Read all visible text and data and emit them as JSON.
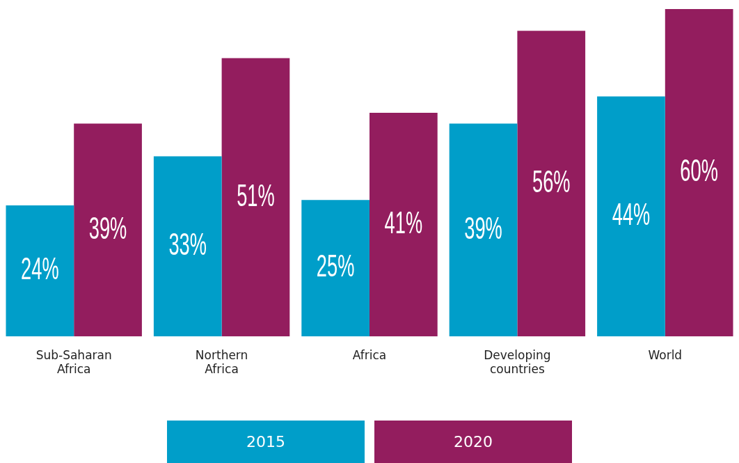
{
  "chart_data": {
    "type": "bar",
    "categories": [
      "Sub-Saharan Africa",
      "Northern Africa",
      "Africa",
      "Developing countries",
      "World"
    ],
    "series": [
      {
        "name": "2015",
        "color": "#009ec9",
        "values": [
          24,
          33,
          25,
          39,
          44
        ],
        "value_labels": [
          "24%",
          "33%",
          "25%",
          "39%",
          "44%"
        ]
      },
      {
        "name": "2020",
        "color": "#931d5e",
        "values": [
          39,
          51,
          41,
          56,
          60
        ],
        "value_labels": [
          "39%",
          "51%",
          "41%",
          "56%",
          "60%"
        ]
      }
    ],
    "legend": "bottom",
    "grid": false
  }
}
